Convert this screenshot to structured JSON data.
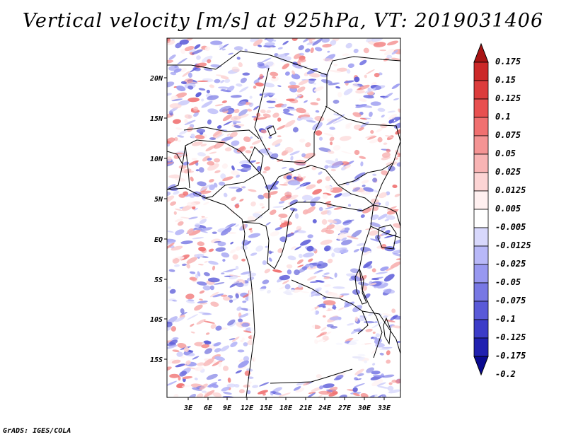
{
  "title": "Vertical velocity [m/s] at 925hPa, VT: 2019031406",
  "credit": "GrADS: IGES/COLA",
  "lat_labels": [
    "20N",
    "15N",
    "10N",
    "5N",
    "EQ",
    "5S",
    "10S",
    "15S"
  ],
  "lon_labels": [
    "3E",
    "6E",
    "9E",
    "12E",
    "15E",
    "18E",
    "21E",
    "24E",
    "27E",
    "30E",
    "33E"
  ],
  "colorbar": {
    "levels": [
      "0.175",
      "0.15",
      "0.125",
      "0.1",
      "0.075",
      "0.05",
      "0.025",
      "0.0125",
      "0.005",
      "-0.005",
      "-0.0125",
      "-0.025",
      "-0.05",
      "-0.075",
      "-0.1",
      "-0.125",
      "-0.175",
      "-0.2"
    ],
    "colors": [
      "#a81414",
      "#cc2828",
      "#dc3c3c",
      "#e85050",
      "#f07070",
      "#f49494",
      "#f8b4b4",
      "#fcd4d4",
      "#fff0f0",
      "#ffffff",
      "#d8d8fc",
      "#b8b8f8",
      "#9898f0",
      "#7878e4",
      "#5a5ad8",
      "#3c3cc8",
      "#2020b0",
      "#0a0a90"
    ]
  },
  "chart_data": {
    "type": "heatmap",
    "title": "Vertical velocity [m/s] at 925hPa, VT: 2019031406",
    "variable": "Vertical velocity",
    "units": "m/s",
    "level": "925hPa",
    "valid_time": "2019031406",
    "lat_range": [
      -19.5,
      24.5
    ],
    "lon_range": [
      0,
      34
    ],
    "lat_ticks": [
      "20N",
      "15N",
      "10N",
      "5N",
      "EQ",
      "5S",
      "10S",
      "15S"
    ],
    "lon_ticks": [
      "3E",
      "6E",
      "9E",
      "12E",
      "15E",
      "18E",
      "21E",
      "24E",
      "27E",
      "30E",
      "33E"
    ],
    "contour_levels": [
      0.175,
      0.15,
      0.125,
      0.1,
      0.075,
      0.05,
      0.025,
      0.0125,
      0.005,
      -0.005,
      -0.0125,
      -0.025,
      -0.05,
      -0.075,
      -0.1,
      -0.125,
      -0.175,
      -0.2
    ]
  }
}
